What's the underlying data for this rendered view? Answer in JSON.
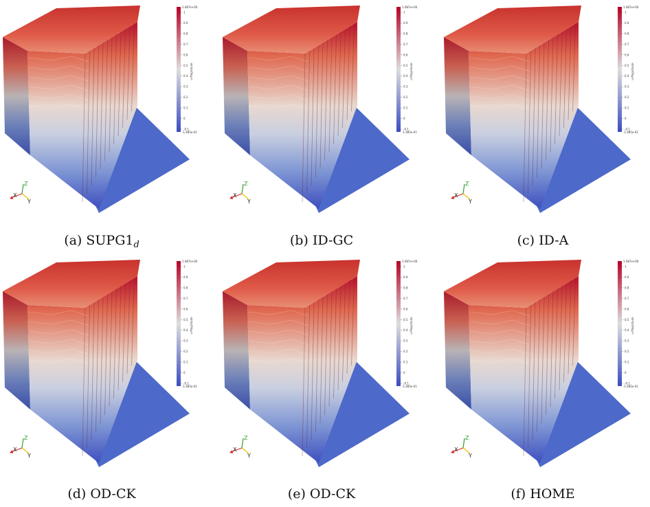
{
  "colorbar": {
    "max_label": "1.087e+00",
    "min_label": "-1.485e-01",
    "title_a": "u-Magnitude",
    "title_b": "u-Magnitude",
    "ticks": [
      "1",
      "0.9",
      "0.8",
      "0.7",
      "0.6",
      "0.5",
      "0.4",
      "0.3",
      "0.2",
      "0.1",
      "0",
      "-0.1"
    ]
  },
  "axes": {
    "x": "X",
    "y": "Y",
    "z": "Z"
  },
  "colors": {
    "high": "#b40426",
    "mid": "#dddddd",
    "low": "#3b4cc0",
    "floor": "#4d69c9"
  },
  "panels": [
    {
      "id": "a",
      "caption_prefix": "(a) SUPG1",
      "caption_sub": "d"
    },
    {
      "id": "b",
      "caption_prefix": "(b) ID-GC",
      "caption_sub": ""
    },
    {
      "id": "c",
      "caption_prefix": "(c) ID-A",
      "caption_sub": ""
    },
    {
      "id": "d",
      "caption_prefix": "(d) OD-CK",
      "caption_sub": ""
    },
    {
      "id": "e",
      "caption_prefix": "(e) OD-CK",
      "caption_sub": ""
    },
    {
      "id": "f",
      "caption_prefix": "(f) HOME",
      "caption_sub": ""
    }
  ]
}
